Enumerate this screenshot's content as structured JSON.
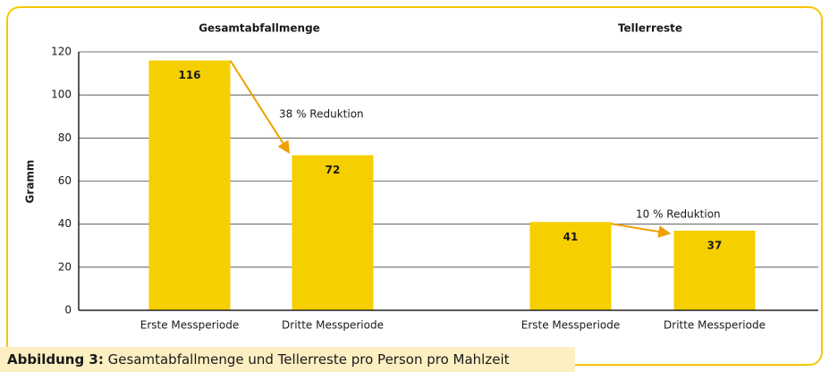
{
  "chart_data": {
    "type": "bar",
    "groups": [
      "Gesamtabfallmenge",
      "Tellerreste"
    ],
    "categories": [
      "Erste Messperiode",
      "Dritte Messperiode",
      "Erste Messperiode",
      "Dritte Messperiode"
    ],
    "values": [
      116,
      72,
      41,
      37
    ],
    "color": "#f5cf00",
    "ylabel": "Gramm",
    "ylim": [
      0,
      120
    ],
    "yticks": [
      0,
      20,
      40,
      60,
      80,
      100,
      120
    ],
    "grid": true,
    "annotations": [
      "38 % Reduktion",
      "10 % Reduktion"
    ]
  },
  "caption": {
    "label": "Abbildung 3:",
    "text": "Gesamtabfallmenge und Tellerreste pro Person pro Mahlzeit"
  }
}
